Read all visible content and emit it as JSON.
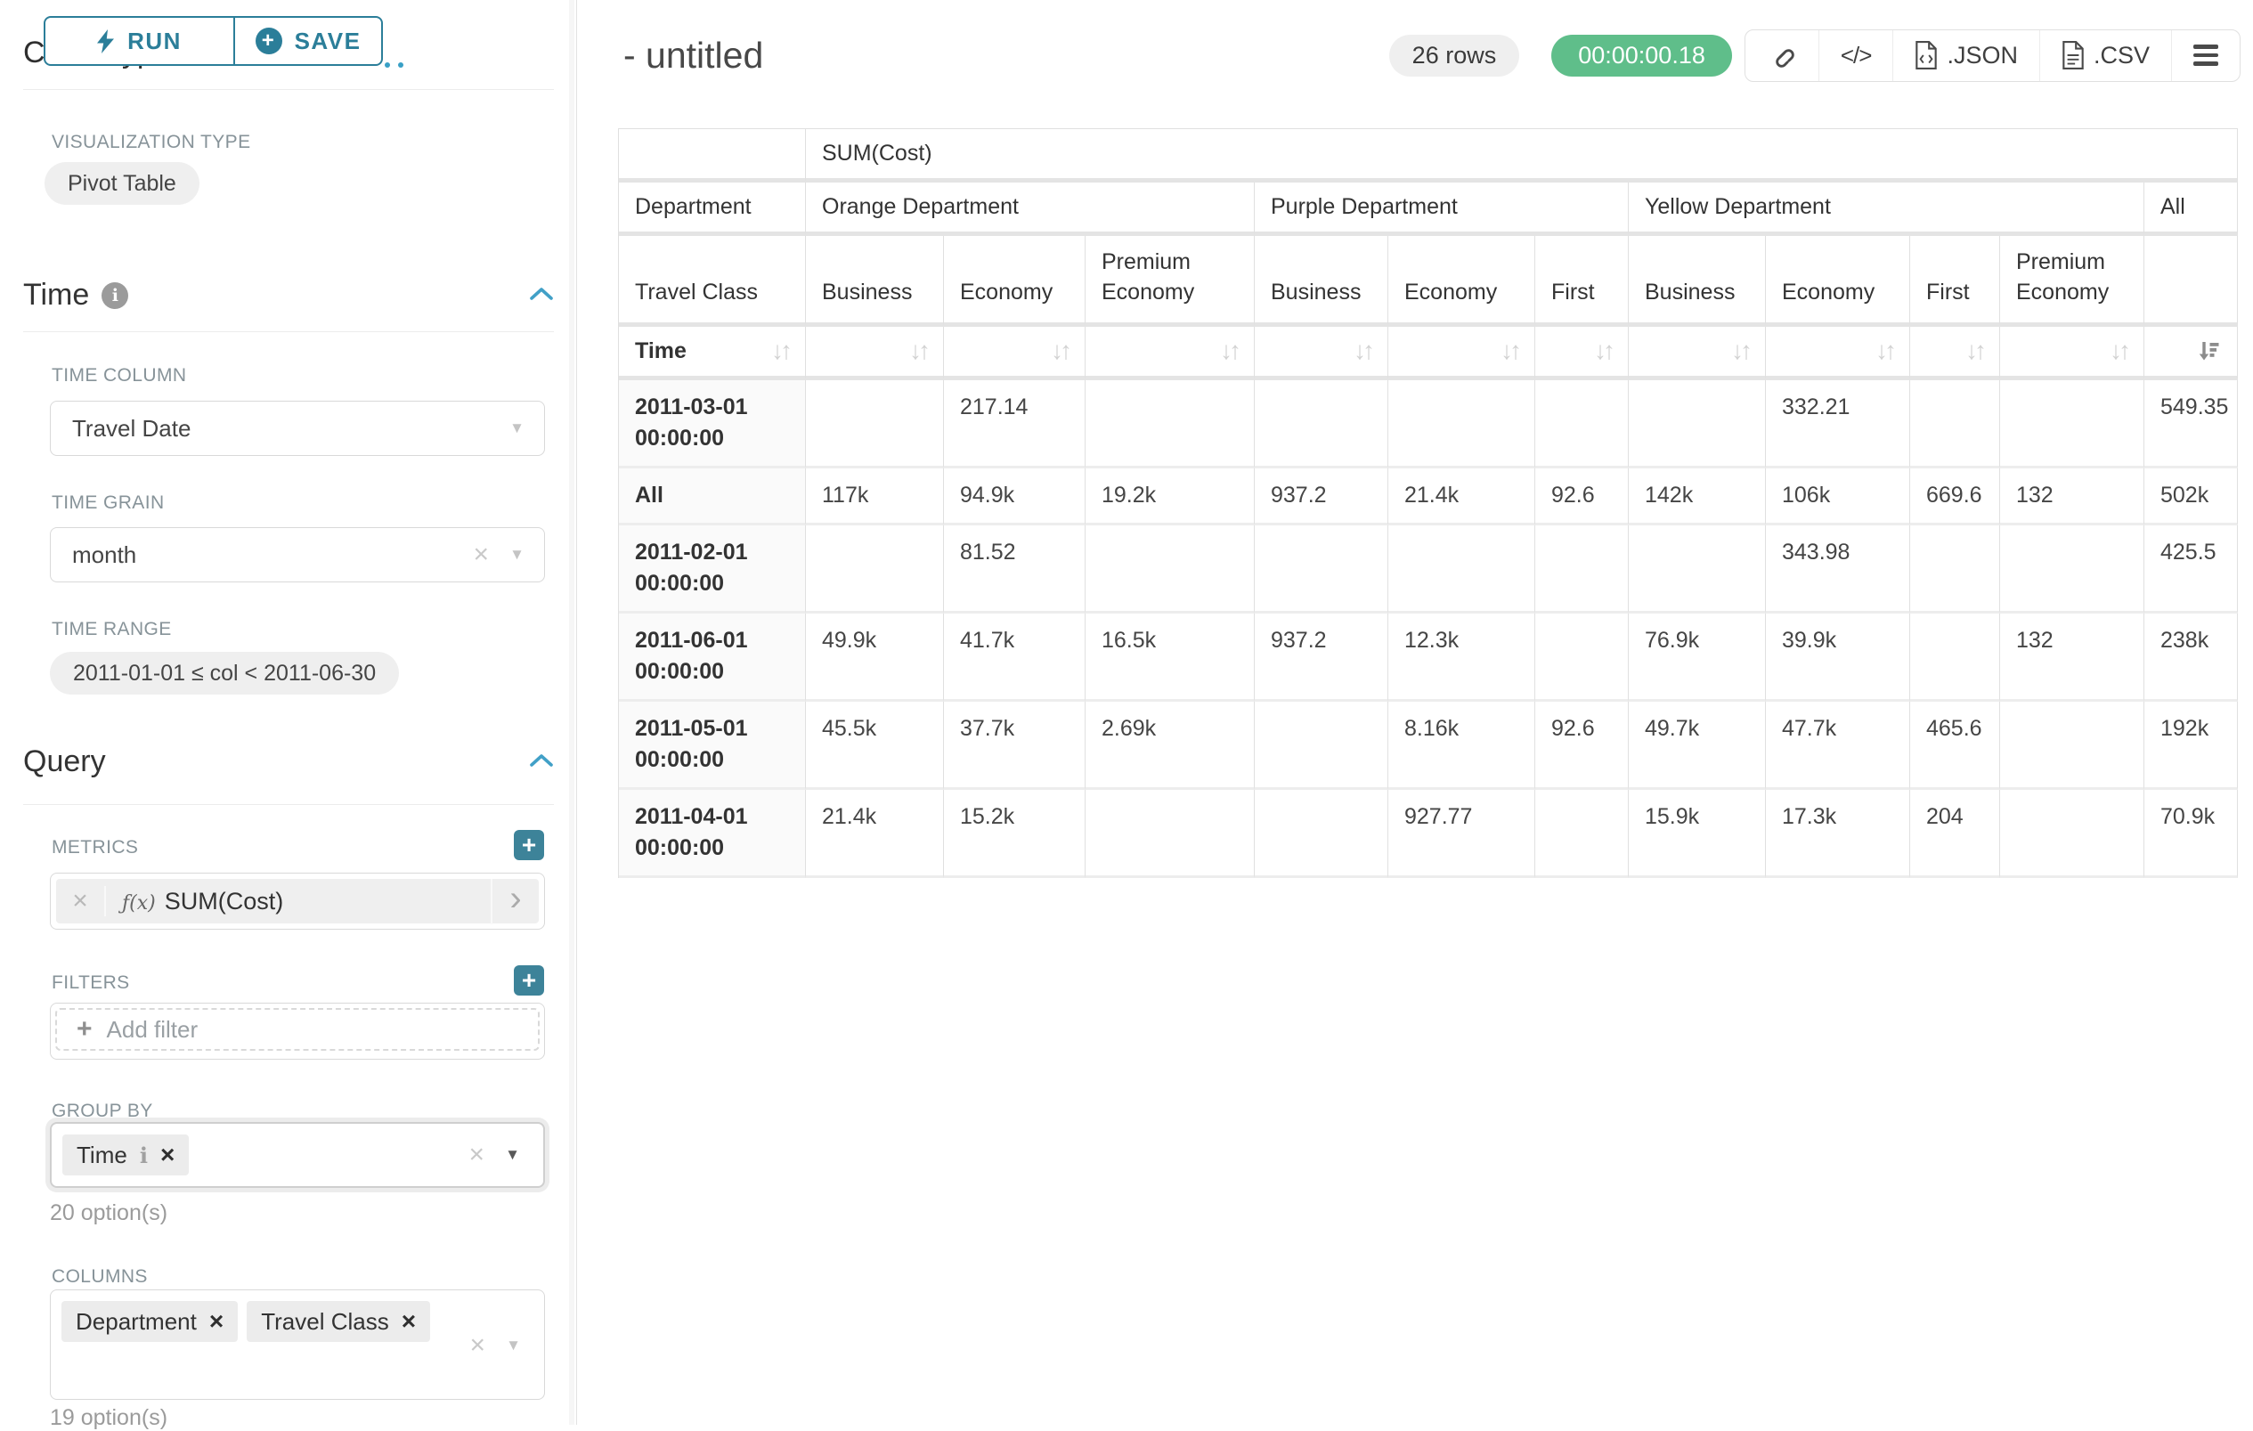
{
  "colors": {
    "accent_teal": "#2b7e99",
    "plus_button_teal": "#3d8399",
    "chevron_blue": "#41a0c7",
    "timer_green": "#5fbe8a",
    "label_gray": "#879399"
  },
  "toolbar": {
    "run_label": "RUN",
    "save_label": "SAVE"
  },
  "sidebar": {
    "chart_type_header": "Chart Type",
    "viz": {
      "label": "VISUALIZATION TYPE",
      "value": "Pivot Table"
    },
    "time": {
      "title": "Time",
      "column": {
        "label": "TIME COLUMN",
        "value": "Travel Date"
      },
      "grain": {
        "label": "TIME GRAIN",
        "value": "month"
      },
      "range": {
        "label": "TIME RANGE",
        "value": "2011-01-01 ≤ col < 2011-06-30"
      }
    },
    "query": {
      "title": "Query",
      "metrics": {
        "label": "METRICS",
        "metric": {
          "fx": "ƒ(x)",
          "name": "SUM(Cost)"
        }
      },
      "filters": {
        "label": "FILTERS",
        "placeholder": "Add filter"
      },
      "group_by": {
        "label": "GROUP BY",
        "tags": [
          {
            "label": "Time",
            "has_info": true
          }
        ],
        "hint": "20 option(s)"
      },
      "columns": {
        "label": "COLUMNS",
        "tags": [
          {
            "label": "Department"
          },
          {
            "label": "Travel Class"
          }
        ],
        "hint": "19 option(s)"
      }
    }
  },
  "header": {
    "title": "- untitled",
    "row_count": "26 rows",
    "duration": "00:00:00.18",
    "code_glyph": "</>",
    "export_json": ".JSON",
    "export_csv": ".CSV"
  },
  "pivot_table": {
    "metric": "SUM(Cost)",
    "col_dim_label": "Department",
    "class_dim_label": "Travel Class",
    "row_dim_label": "Time",
    "groups": [
      {
        "name": "Orange Department",
        "classes": [
          "Business",
          "Economy",
          "Premium Economy"
        ]
      },
      {
        "name": "Purple Department",
        "classes": [
          "Business",
          "Economy",
          "First"
        ]
      },
      {
        "name": "Yellow Department",
        "classes": [
          "Business",
          "Economy",
          "First",
          "Premium Economy"
        ]
      },
      {
        "name": "All",
        "classes": [
          ""
        ]
      }
    ],
    "sort": {
      "active_column_index": 10,
      "direction": "desc"
    },
    "rows": [
      {
        "label": "2011-03-01 00:00:00",
        "values": [
          "",
          "217.14",
          "",
          "",
          "",
          "",
          "",
          "332.21",
          "",
          "",
          "549.35"
        ]
      },
      {
        "label": "All",
        "values": [
          "117k",
          "94.9k",
          "19.2k",
          "937.2",
          "21.4k",
          "92.6",
          "142k",
          "106k",
          "669.6",
          "132",
          "502k"
        ]
      },
      {
        "label": "2011-02-01 00:00:00",
        "values": [
          "",
          "81.52",
          "",
          "",
          "",
          "",
          "",
          "343.98",
          "",
          "",
          "425.5"
        ]
      },
      {
        "label": "2011-06-01 00:00:00",
        "values": [
          "49.9k",
          "41.7k",
          "16.5k",
          "937.2",
          "12.3k",
          "",
          "76.9k",
          "39.9k",
          "",
          "132",
          "238k"
        ]
      },
      {
        "label": "2011-05-01 00:00:00",
        "values": [
          "45.5k",
          "37.7k",
          "2.69k",
          "",
          "8.16k",
          "92.6",
          "49.7k",
          "47.7k",
          "465.6",
          "",
          "192k"
        ]
      },
      {
        "label": "2011-04-01 00:00:00",
        "values": [
          "21.4k",
          "15.2k",
          "",
          "",
          "927.77",
          "",
          "15.9k",
          "17.3k",
          "204",
          "",
          "70.9k"
        ]
      }
    ]
  }
}
